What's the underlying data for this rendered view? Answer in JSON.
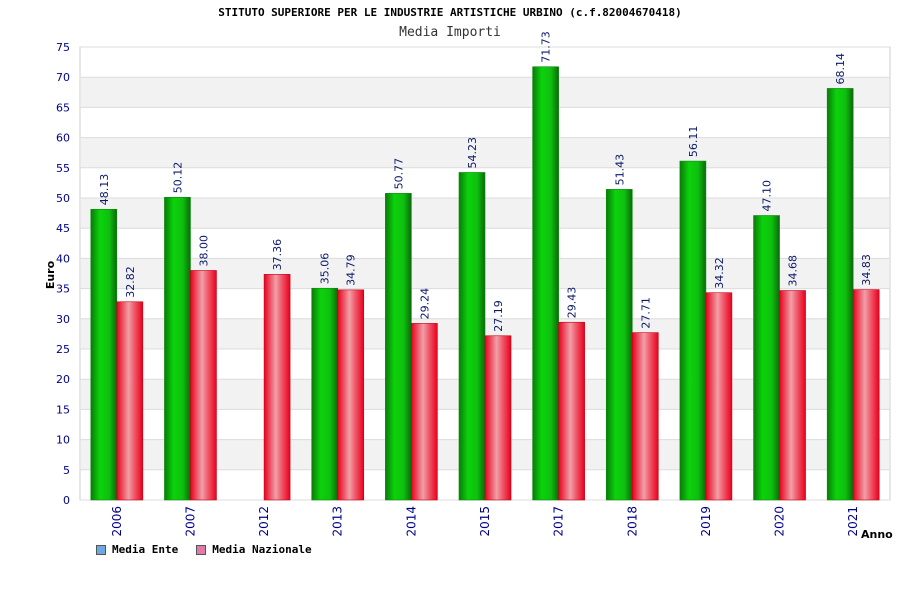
{
  "chart_data": {
    "type": "bar",
    "title": "STITUTO SUPERIORE PER LE INDUSTRIE ARTISTICHE URBINO (c.f.82004670418)",
    "subtitle": "Media Importi",
    "xlabel": "Anno",
    "ylabel": "Euro",
    "ylim": [
      0,
      75
    ],
    "yticks": [
      0,
      5,
      10,
      15,
      20,
      25,
      30,
      35,
      40,
      45,
      50,
      55,
      60,
      65,
      70,
      75
    ],
    "grid": true,
    "legend_position": "bottom-left",
    "categories": [
      "2006",
      "2007",
      "2012",
      "2013",
      "2014",
      "2015",
      "2017",
      "2018",
      "2019",
      "2020",
      "2021"
    ],
    "series": [
      {
        "name": "Media Ente",
        "color": "#16c216",
        "legend_color": "#6ea8e0",
        "values": [
          48.13,
          50.12,
          null,
          35.06,
          50.77,
          54.23,
          71.73,
          51.43,
          56.11,
          47.1,
          68.14
        ],
        "labels": [
          "48.13",
          "50.12",
          "",
          "35.06",
          "50.77",
          "54.23",
          "71.73",
          "51.43",
          "56.11",
          "47.10",
          "68.14"
        ]
      },
      {
        "name": "Media Nazionale",
        "color": "#f0142a",
        "legend_color": "#e07aa8",
        "values": [
          32.82,
          38.0,
          37.36,
          34.79,
          29.24,
          27.19,
          29.43,
          27.71,
          34.32,
          34.68,
          34.83
        ],
        "labels": [
          "32.82",
          "38.00",
          "37.36",
          "34.79",
          "29.24",
          "27.19",
          "29.43",
          "27.71",
          "34.32",
          "34.68",
          "34.83"
        ]
      }
    ]
  }
}
